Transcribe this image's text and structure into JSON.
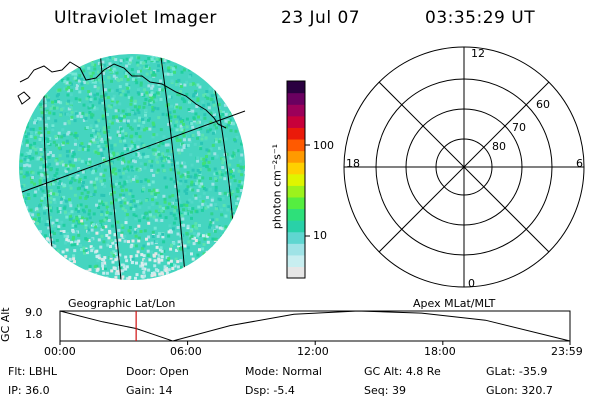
{
  "header": {
    "instrument": "Ultraviolet Imager",
    "date": "23 Jul 07",
    "time": "03:35:29 UT"
  },
  "colorbar": {
    "unit_label": "photon cm⁻²s⁻¹",
    "ticks": [
      "100",
      "10"
    ],
    "colors": [
      "#e6e6e6",
      "#c8eef0",
      "#9fe3e6",
      "#5fd6d0",
      "#29d1a8",
      "#2ee07a",
      "#55ee40",
      "#9cf21c",
      "#dff500",
      "#ffd000",
      "#ff9a00",
      "#ff5a00",
      "#ea1a0a",
      "#c8003a",
      "#9c005a",
      "#6a0060",
      "#2a0040"
    ]
  },
  "polar_plot": {
    "mlt_labels": {
      "top": "12",
      "left": "18",
      "right": "6",
      "bottom": "0"
    },
    "lat_labels": [
      "60",
      "70",
      "80"
    ]
  },
  "left_caption": "Geographic Lat/Lon",
  "right_caption": "Apex MLat/MLT",
  "altitude_chart": {
    "ylabel": "GC Alt",
    "yticks": [
      "9.0",
      "1.8"
    ],
    "xticks": [
      "00:00",
      "06:00",
      "12:00",
      "18:00",
      "23:59"
    ],
    "marker_color": "#d01010"
  },
  "chart_data": {
    "type": "line",
    "title": "",
    "xlabel": "",
    "ylabel": "GC Alt",
    "x": [
      0,
      2,
      3.58,
      4.5,
      5.3,
      8,
      11,
      14,
      17,
      20,
      23.98
    ],
    "values": [
      9.0,
      6.4,
      4.8,
      3.2,
      1.8,
      5.5,
      8.2,
      9.0,
      8.5,
      6.8,
      1.8
    ],
    "ylim": [
      1.8,
      9.0
    ],
    "xlim": [
      0,
      23.98
    ],
    "marker_x": 3.58
  },
  "footer": {
    "row1": [
      {
        "label": "Flt:",
        "value": "LBHL"
      },
      {
        "label": "Door:",
        "value": "Open"
      },
      {
        "label": "Mode:",
        "value": "Normal"
      },
      {
        "label": "GC Alt:",
        "value": "4.8 Re"
      },
      {
        "label": "GLat:",
        "value": "-35.9"
      }
    ],
    "row2": [
      {
        "label": "IP:",
        "value": "36.0"
      },
      {
        "label": "Gain:",
        "value": "14"
      },
      {
        "label": "Dsp:",
        "value": "-5.4"
      },
      {
        "label": "Seq:",
        "value": "39"
      },
      {
        "label": "GLon:",
        "value": "320.7"
      }
    ]
  }
}
